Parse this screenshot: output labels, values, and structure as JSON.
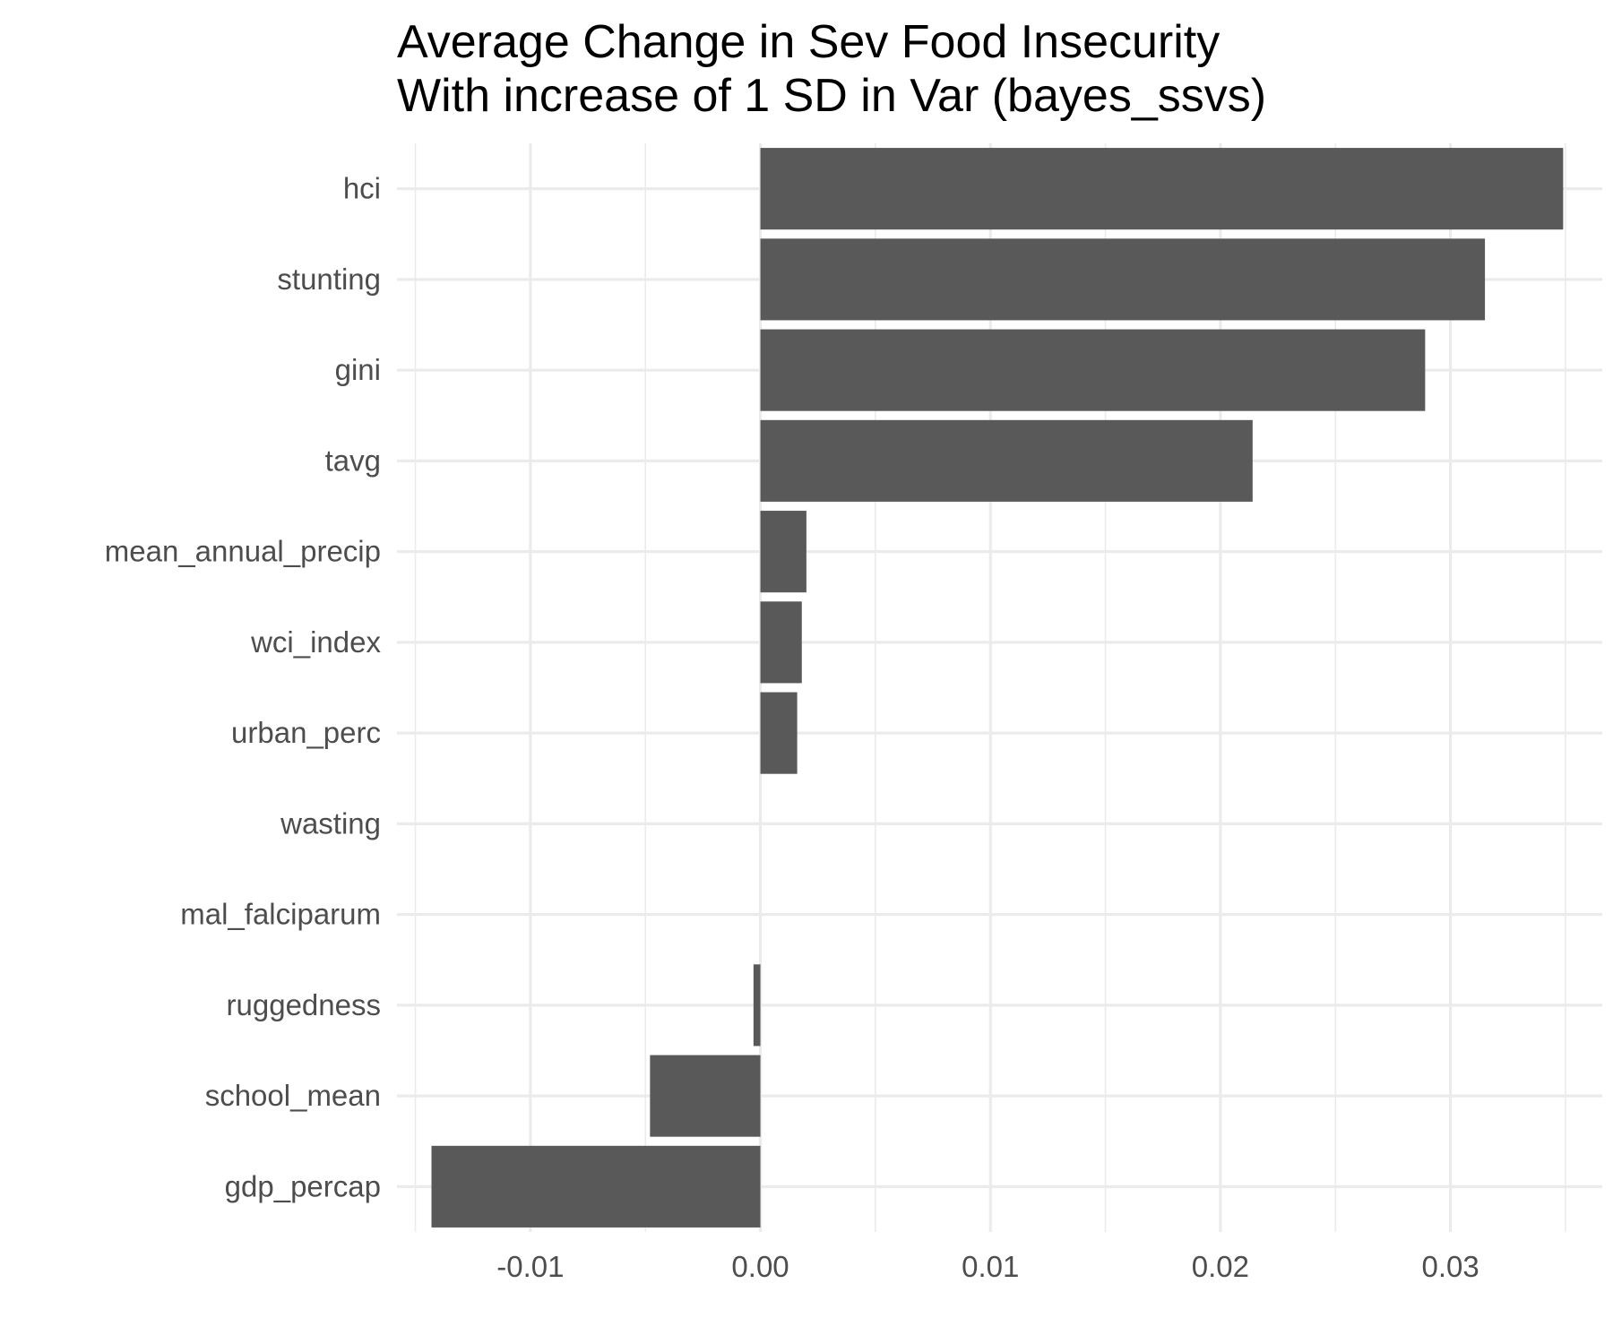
{
  "chart_data": {
    "type": "bar",
    "orientation": "horizontal",
    "title_lines": [
      "Average Change in Sev Food Insecurity",
      "With increase of 1 SD in Var (bayes_ssvs)"
    ],
    "categories": [
      "hci",
      "stunting",
      "gini",
      "tavg",
      "mean_annual_precip",
      "wci_index",
      "urban_perc",
      "wasting",
      "mal_falciparum",
      "ruggedness",
      "school_mean",
      "gdp_percap"
    ],
    "values": [
      0.0349,
      0.0315,
      0.0289,
      0.0214,
      0.002,
      0.0018,
      0.0016,
      0.0,
      0.0,
      -0.0003,
      -0.0048,
      -0.0143
    ],
    "x_ticks": [
      -0.01,
      0.0,
      0.01,
      0.02,
      0.03
    ],
    "x_tick_labels": [
      "-0.01",
      "0.00",
      "0.01",
      "0.02",
      "0.03"
    ],
    "xlim": [
      -0.0158,
      0.0366
    ],
    "grid": true,
    "bar_color": "#595959",
    "grid_color": "#ebebeb",
    "xlabel": "",
    "ylabel": ""
  }
}
